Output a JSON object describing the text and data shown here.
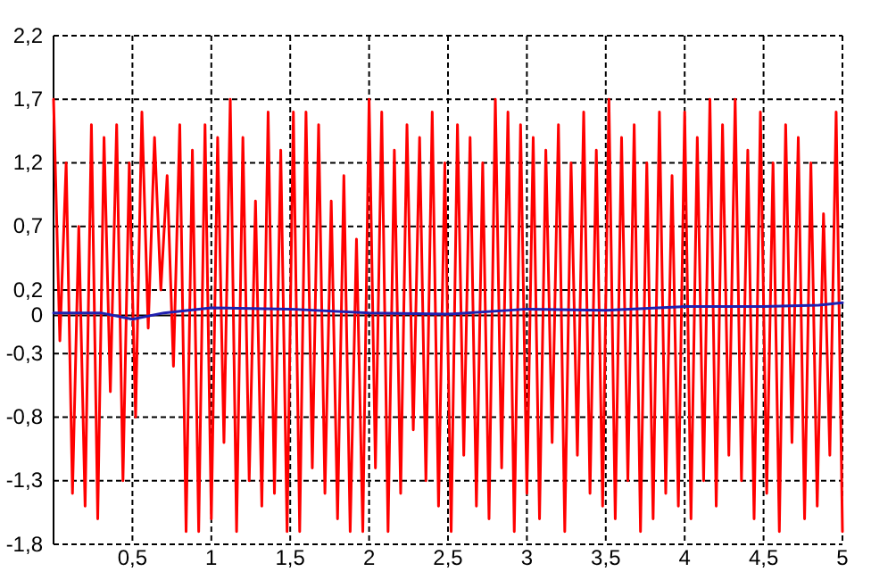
{
  "chart_data": {
    "type": "line",
    "xlim": [
      0,
      5
    ],
    "ylim": [
      -1.8,
      2.2
    ],
    "xticks": [
      {
        "value": 0.5,
        "label": "0,5"
      },
      1,
      {
        "value": 1.5,
        "label": "1,5"
      },
      2,
      {
        "value": 2.5,
        "label": "2,5"
      },
      3,
      {
        "value": 3.5,
        "label": "3,5"
      },
      4,
      {
        "value": 4.5,
        "label": "4,5"
      },
      5
    ],
    "yticks": [
      {
        "value": -1.8,
        "label": "-1,8"
      },
      {
        "value": -1.3,
        "label": "-1,3"
      },
      {
        "value": -0.8,
        "label": "-0,8"
      },
      {
        "value": -0.3,
        "label": "-0,3"
      },
      0,
      {
        "value": 0.2,
        "label": "0,2"
      },
      {
        "value": 0.7,
        "label": "0,7"
      },
      {
        "value": 1.2,
        "label": "1,2"
      },
      {
        "value": 1.7,
        "label": "1,7"
      },
      {
        "value": 2.2,
        "label": "2,2"
      }
    ],
    "grid": true,
    "marker": "none",
    "line_style": "solid",
    "series": [
      {
        "color": "#ff0000",
        "x": [
          0,
          0.04,
          0.08,
          0.12,
          0.16,
          0.2,
          0.24,
          0.28,
          0.32,
          0.36,
          0.4,
          0.44,
          0.48,
          0.52,
          0.56,
          0.6,
          0.64,
          0.68,
          0.72,
          0.76,
          0.8,
          0.84,
          0.88,
          0.92,
          0.96,
          1,
          1.04,
          1.08,
          1.12,
          1.16,
          1.2,
          1.24,
          1.28,
          1.32,
          1.36,
          1.4,
          1.44,
          1.48,
          1.52,
          1.56,
          1.6,
          1.64,
          1.68,
          1.72,
          1.76,
          1.8,
          1.84,
          1.88,
          1.92,
          1.96,
          2,
          2.04,
          2.08,
          2.12,
          2.16,
          2.2,
          2.24,
          2.28,
          2.32,
          2.36,
          2.4,
          2.44,
          2.48,
          2.52,
          2.56,
          2.6,
          2.64,
          2.68,
          2.72,
          2.76,
          2.8,
          2.84,
          2.88,
          2.92,
          2.96,
          3,
          3.04,
          3.08,
          3.12,
          3.16,
          3.2,
          3.24,
          3.28,
          3.32,
          3.36,
          3.4,
          3.44,
          3.48,
          3.52,
          3.56,
          3.6,
          3.64,
          3.68,
          3.72,
          3.76,
          3.8,
          3.84,
          3.88,
          3.92,
          3.96,
          4,
          4.04,
          4.08,
          4.12,
          4.16,
          4.2,
          4.24,
          4.28,
          4.32,
          4.36,
          4.4,
          4.44,
          4.48,
          4.52,
          4.56,
          4.6,
          4.64,
          4.68,
          4.72,
          4.76,
          4.8,
          4.84,
          4.88,
          4.92,
          4.96,
          5
        ],
        "values": [
          1.7,
          -0.2,
          1.2,
          -1.4,
          0.7,
          -1.5,
          1.5,
          -1.6,
          1.4,
          -0.6,
          1.5,
          -1.3,
          1.2,
          -0.8,
          1.6,
          -0.1,
          1.4,
          0.2,
          1.1,
          -0.4,
          1.5,
          -1.7,
          1.3,
          -1.7,
          1.5,
          -1.6,
          1.4,
          -1.0,
          1.7,
          -1.7,
          1.4,
          -1.3,
          0.9,
          -1.5,
          1.6,
          -1.4,
          1.3,
          -1.7,
          1.6,
          -1.7,
          1.6,
          -1.2,
          1.5,
          -1.4,
          0.9,
          -1.6,
          1.1,
          -1.7,
          0.6,
          -1.7,
          1.7,
          -1.2,
          1.6,
          -1.7,
          1.3,
          -1.4,
          1.5,
          -0.9,
          1.4,
          -1.3,
          1.6,
          -1.5,
          1.2,
          -1.7,
          1.5,
          -1.1,
          1.4,
          -1.5,
          1.2,
          -1.6,
          1.7,
          -1.2,
          1.6,
          -1.7,
          1.5,
          -1.4,
          1.4,
          -1.6,
          1.3,
          -1.0,
          1.5,
          -1.7,
          1.2,
          -1.1,
          1.6,
          -1.4,
          1.3,
          -1.5,
          1.7,
          -1.6,
          1.4,
          -1.3,
          1.5,
          -1.7,
          1.2,
          -1.6,
          1.6,
          -1.4,
          1.1,
          -1.5,
          1.6,
          -1.6,
          1.4,
          -1.3,
          1.7,
          -1.5,
          1.5,
          -1.1,
          1.7,
          -1.3,
          1.3,
          -1.6,
          1.6,
          -1.4,
          1.2,
          -1.7,
          1.5,
          -1.0,
          1.4,
          -1.6,
          1.2,
          -1.5,
          0.8,
          -1.1,
          1.6,
          -1.7
        ]
      },
      {
        "color": "#2020b0",
        "x": [
          0,
          0.3,
          0.5,
          0.7,
          1,
          1.5,
          2,
          2.5,
          3,
          3.5,
          4,
          4.5,
          4.85,
          5
        ],
        "values": [
          0.02,
          0.02,
          -0.03,
          0.02,
          0.06,
          0.05,
          0.02,
          0.01,
          0.05,
          0.04,
          0.07,
          0.07,
          0.08,
          0.1
        ]
      }
    ]
  }
}
